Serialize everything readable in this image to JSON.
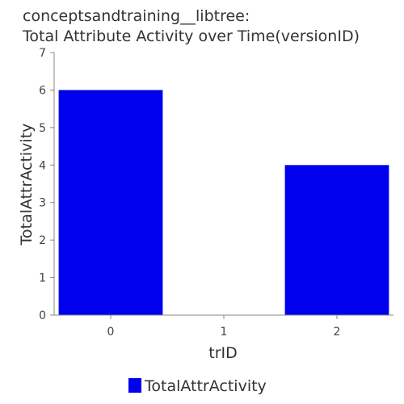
{
  "chart_data": {
    "type": "bar",
    "title_line1": "conceptsandtraining__libtree:",
    "title_line2": "Total Attribute Activity over Time(versionID)",
    "xlabel": "trID",
    "ylabel": "TotalAttrActivity",
    "categories": [
      "0",
      "1",
      "2"
    ],
    "series": [
      {
        "name": "TotalAttrActivity",
        "values": [
          6,
          0,
          4
        ],
        "color": "#0000ee"
      }
    ],
    "ylim": [
      0,
      7
    ],
    "yticks": [
      "0",
      "1",
      "2",
      "3",
      "4",
      "5",
      "6",
      "7"
    ],
    "grid": false,
    "legend_position": "bottom-center"
  }
}
